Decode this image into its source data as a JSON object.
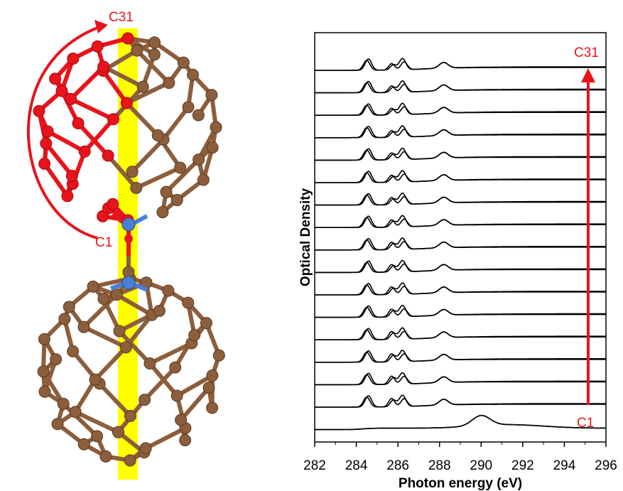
{
  "molecule_labels": {
    "top": "C31",
    "bottom": "C1"
  },
  "colors": {
    "carbon": "#8c5e3c",
    "highlight": "#e8141b",
    "nitrogen": "#4a7fd6",
    "axis_bar": "#ffff00",
    "arrow": "#e8141b"
  },
  "chart_data": {
    "type": "line",
    "title": "",
    "xlabel": "Photon energy (eV)",
    "ylabel": "Optical Density",
    "xlim": [
      282,
      296
    ],
    "xticks": [
      282,
      284,
      286,
      288,
      290,
      292,
      294,
      296
    ],
    "xtick_labels": [
      "282",
      "284",
      "286",
      "288",
      "290",
      "292",
      "294",
      "296"
    ],
    "y_ticks_shown": false,
    "grid": false,
    "legend": "none",
    "trace_count": 17,
    "arrow_labels": {
      "start": "C1",
      "end": "C31"
    },
    "peak_positions_eV": [
      284.5,
      285.7,
      286.3,
      288.2
    ]
  }
}
